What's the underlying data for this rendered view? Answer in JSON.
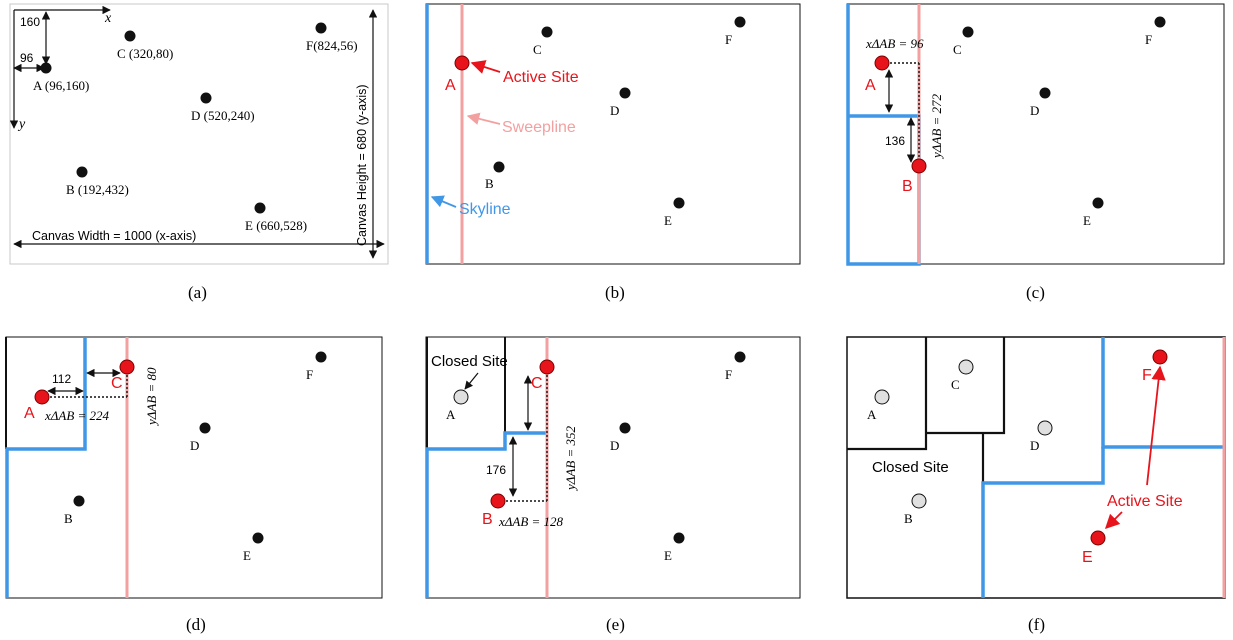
{
  "colors": {
    "skyline": "#3f97e6",
    "sweepline": "#f2a0a0",
    "active": "#e8141b",
    "closed_fill": "#e0e0e0",
    "point": "#111111"
  },
  "panels": {
    "a": {
      "caption": "(a)",
      "x_axis": "x",
      "y_axis": "y",
      "dim_160": "160",
      "dim_96": "96",
      "width_label": "Canvas Width = 1000 (x-axis)",
      "height_label": "Canvas Height = 680 (y-axis)",
      "labels": {
        "A": "A (96,160)",
        "B": "B (192,432)",
        "C": "C (320,80)",
        "D": "D (520,240)",
        "E": "E (660,528)",
        "F": "F(824,56)"
      }
    },
    "b": {
      "caption": "(b)",
      "active_site": "Active Site",
      "sweepline": "Sweepline",
      "skyline": "Skyline",
      "labels": {
        "A": "A",
        "B": "B",
        "C": "C",
        "D": "D",
        "E": "E",
        "F": "F"
      }
    },
    "c": {
      "caption": "(c)",
      "x_label": "xΔAB = 96",
      "y_label": "yΔAB = 272",
      "dim_136": "136",
      "labels": {
        "A": "A",
        "B": "B",
        "C": "C",
        "D": "D",
        "E": "E",
        "F": "F"
      }
    },
    "d": {
      "caption": "(d)",
      "x_label": "xΔAB = 224",
      "y_label": "yΔAB = 80",
      "dim_112": "112",
      "labels": {
        "A": "A",
        "B": "B",
        "C": "C",
        "D": "D",
        "E": "E",
        "F": "F"
      }
    },
    "e": {
      "caption": "(e)",
      "closed_site": "Closed Site",
      "x_label": "xΔAB = 128",
      "y_label": "yΔAB = 352",
      "dim_176": "176",
      "labels": {
        "A": "A",
        "B": "B",
        "C": "C",
        "D": "D",
        "E": "E",
        "F": "F"
      }
    },
    "f": {
      "caption": "(f)",
      "closed_site": "Closed Site",
      "active_site": "Active Site",
      "labels": {
        "A": "A",
        "B": "B",
        "C": "C",
        "D": "D",
        "E": "E",
        "F": "F"
      }
    }
  }
}
